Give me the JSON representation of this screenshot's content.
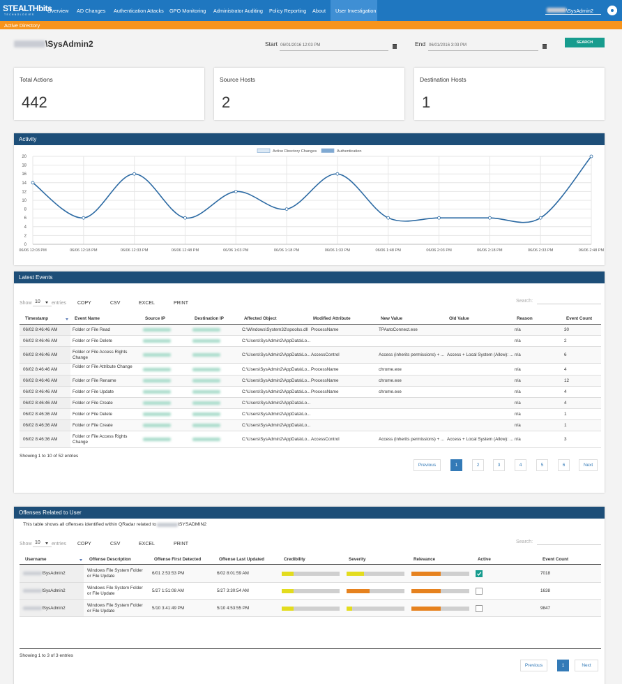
{
  "nav": {
    "brand": "STEALTHbits",
    "brand_sub": "TECHNOLOGIES",
    "items": [
      "Overview",
      "AD Changes",
      "Authentication Attacks",
      "GPO Monitoring",
      "Administrator Auditing",
      "Policy Reporting",
      "About",
      "User Investigation"
    ],
    "active": 7,
    "user": "\\SysAdmin2"
  },
  "section": "Active Directory",
  "query": {
    "user": "\\SysAdmin2",
    "start_label": "Start",
    "start": "06/01/2016 12:03 PM",
    "end_label": "End",
    "end": "06/01/2016 3:03 PM",
    "search": "SEARCH"
  },
  "cards": [
    {
      "label": "Total Actions",
      "value": 442
    },
    {
      "label": "Source Hosts",
      "value": 2
    },
    {
      "label": "Destination Hosts",
      "value": 1
    }
  ],
  "activity": {
    "title": "Activity",
    "type": "line",
    "legend": [
      {
        "name": "Active Directory Changes",
        "color": "#dce9f5"
      },
      {
        "name": "Authentication",
        "color": "#7fa9d2"
      }
    ],
    "line_color": "#2c6aa3",
    "x": [
      "06/06 12:03 PM",
      "06/06 12:18 PM",
      "06/06 12:33 PM",
      "06/06 12:48 PM",
      "06/06 1:03 PM",
      "06/06 1:18 PM",
      "06/06 1:33 PM",
      "06/06 1:48 PM",
      "06/06 2:03 PM",
      "06/06 2:18 PM",
      "06/06 2:33 PM",
      "06/06 2:48 PM"
    ],
    "values": [
      14,
      6,
      16,
      6,
      12,
      8,
      16,
      6,
      6,
      6,
      6,
      20
    ],
    "ylim": [
      0,
      20
    ],
    "yticks": [
      0,
      2,
      4,
      6,
      8,
      10,
      12,
      14,
      16,
      18,
      20
    ],
    "grid": true
  },
  "events": {
    "title": "Latest Events",
    "controls": {
      "show": "Show",
      "length": 10,
      "entries": "entries",
      "buttons": [
        "COPY",
        "CSV",
        "EXCEL",
        "PRINT"
      ],
      "search": "Search:"
    },
    "columns": [
      "Timestamp",
      "Event Name",
      "Source IP",
      "Destination IP",
      "Affected Object",
      "Modified Attribute",
      "New Value",
      "Old Value",
      "Reason",
      "Event Count"
    ],
    "rows": [
      {
        "timestamp": "06/02 8:46:46 AM",
        "event": "Folder or File Read",
        "object": "C:\\Windows\\System32\\spoolss.dll",
        "attribute": "ProcessName",
        "new": "TPAutoConnect.exe",
        "reason": "n/a",
        "count": 30
      },
      {
        "timestamp": "06/02 8:46:46 AM",
        "event": "Folder or File Delete",
        "object": "C:\\Users\\SysAdmin2\\AppData\\Lo...",
        "reason": "n/a",
        "count": 2
      },
      {
        "timestamp": "06/02 8:46:46 AM",
        "event": "Folder or File Access Rights Change",
        "object": "C:\\Users\\SysAdmin2\\AppData\\Lo...",
        "attribute": "AccessControl",
        "new": "Access (inherits permissions) + ...",
        "old": "Access + Local System (Allow): ...",
        "reason": "n/a",
        "count": 6
      },
      {
        "timestamp": "06/02 8:46:46 AM",
        "event": "Folder or File Attribute Change",
        "object": "C:\\Users\\SysAdmin2\\AppData\\Lo...",
        "attribute": "ProcessName",
        "new": "chrome.exe",
        "reason": "n/a",
        "count": 4
      },
      {
        "timestamp": "06/02 8:46:46 AM",
        "event": "Folder or File Rename",
        "object": "C:\\Users\\SysAdmin2\\AppData\\Lo...",
        "attribute": "ProcessName",
        "new": "chrome.exe",
        "reason": "n/a",
        "count": 12
      },
      {
        "timestamp": "06/02 8:46:46 AM",
        "event": "Folder or File Update",
        "object": "C:\\Users\\SysAdmin2\\AppData\\Lo...",
        "attribute": "ProcessName",
        "new": "chrome.exe",
        "reason": "n/a",
        "count": 4
      },
      {
        "timestamp": "06/02 8:46:46 AM",
        "event": "Folder or File Create",
        "object": "C:\\Users\\SysAdmin2\\AppData\\Lo...",
        "reason": "n/a",
        "count": 4
      },
      {
        "timestamp": "06/02 8:46:36 AM",
        "event": "Folder or File Delete",
        "object": "C:\\Users\\SysAdmin2\\AppData\\Lo...",
        "reason": "n/a",
        "count": 1
      },
      {
        "timestamp": "06/02 8:46:36 AM",
        "event": "Folder or File Create",
        "object": "C:\\Users\\SysAdmin2\\AppData\\Lo...",
        "reason": "n/a",
        "count": 1
      },
      {
        "timestamp": "06/02 8:46:36 AM",
        "event": "Folder or File Access Rights Change",
        "object": "C:\\Users\\SysAdmin2\\AppData\\Lo...",
        "attribute": "AccessControl",
        "new": "Access (inherits permissions) + ...",
        "old": "Access + Local System (Allow): ...",
        "reason": "n/a",
        "count": 3
      }
    ],
    "info": "Showing 1 to 10 of 52 entries",
    "pagination": [
      "Previous",
      1,
      2,
      3,
      4,
      5,
      6,
      "Next"
    ],
    "current": 1
  },
  "offenses": {
    "title": "Offenses Related to User",
    "desc_prefix": "This table shows all offenses identified within QRadar related to",
    "desc_user": "\\SYSADMIN2",
    "controls": {
      "show": "Show",
      "length": 10,
      "entries": "entries",
      "buttons": [
        "COPY",
        "CSV",
        "EXCEL",
        "PRINT"
      ],
      "search": "Search:"
    },
    "columns": [
      "Username",
      "Offense Description",
      "Offense First Detected",
      "Offense Last Updated",
      "Credibility",
      "Severity",
      "Relevance",
      "Active",
      "Event Count"
    ],
    "bar_max": 10,
    "rows": [
      {
        "user": "\\SysAdmin2",
        "description": "Windows File System Folder or File Update",
        "first": "6/01 2:53:53 PM",
        "last": "6/02 8:01:59 AM",
        "credibility": {
          "value": 2,
          "color": "#e3dc1e"
        },
        "severity": {
          "value": 3,
          "color": "#e3dc1e"
        },
        "relevance": {
          "value": 5,
          "color": "#e6821f"
        },
        "active": true,
        "count": 7018
      },
      {
        "user": "\\SysAdmin2",
        "description": "Windows File System Folder or File Update",
        "first": "5/27 1:51:08 AM",
        "last": "5/27 3:30:54 AM",
        "credibility": {
          "value": 2,
          "color": "#e3dc1e"
        },
        "severity": {
          "value": 4,
          "color": "#e6821f"
        },
        "relevance": {
          "value": 5,
          "color": "#e6821f"
        },
        "active": false,
        "count": 1638
      },
      {
        "user": "\\SysAdmin2",
        "description": "Windows File System Folder or File Update",
        "first": "5/10 3:41:49 PM",
        "last": "5/10 4:53:55 PM",
        "credibility": {
          "value": 2,
          "color": "#e3dc1e"
        },
        "severity": {
          "value": 1,
          "color": "#e3dc1e"
        },
        "relevance": {
          "value": 5,
          "color": "#e6821f"
        },
        "active": false,
        "count": 9847
      }
    ],
    "info": "Showing 1 to 3 of 3 entries",
    "pagination": [
      "Previous",
      1,
      "Next"
    ],
    "current": 1
  }
}
